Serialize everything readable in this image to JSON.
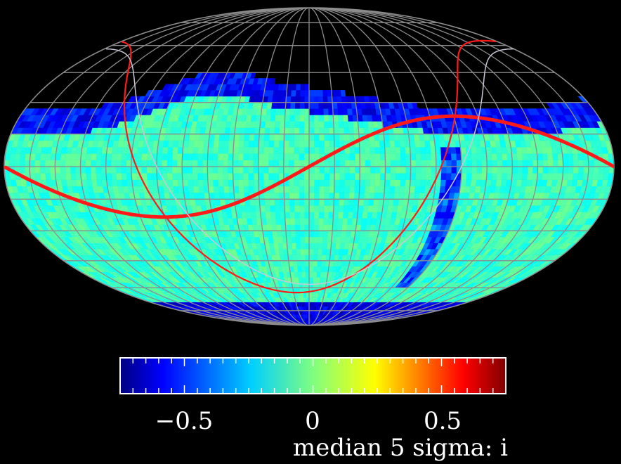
{
  "chart_data": {
    "type": "heatmap",
    "projection": "mollweide",
    "title": "",
    "colorbar": {
      "label": "median 5 sigma: i",
      "colormap": "jet",
      "range": [
        -0.75,
        0.75
      ],
      "ticks": [
        {
          "value": -0.5,
          "label": "−0.5"
        },
        {
          "value": 0,
          "label": "0"
        },
        {
          "value": 0.5,
          "label": "0.5"
        }
      ],
      "minor_tick_step": 0.05
    },
    "grid": {
      "shown": true,
      "color": "#8c8c8c",
      "longitude_step_deg": 15,
      "latitude_step_deg": 15
    },
    "overlays": [
      {
        "name": "ecliptic",
        "color": "#ff1a1a"
      },
      {
        "name": "galactic-plane",
        "color": "#e60000"
      }
    ],
    "survey_footprint": {
      "dec_range_deg": [
        -90,
        32
      ],
      "typical_value": -0.1,
      "north_edge_value": -0.55,
      "south_pole_value": -0.6,
      "galactic_plane_value": -0.45
    },
    "colors": {
      "background": "#000000",
      "grid": "#8c8c8c",
      "curves": "#ff1a1a",
      "alt_curves": "#c8c8d8"
    }
  }
}
